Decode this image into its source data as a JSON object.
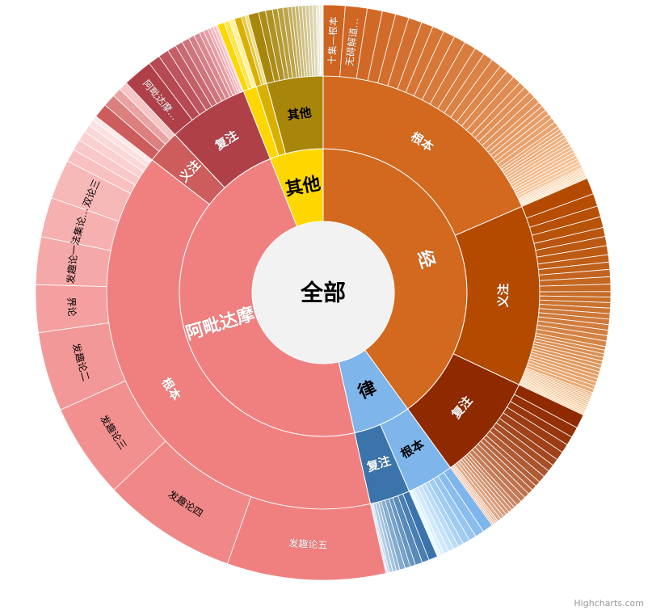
{
  "credits": "Highcharts.com",
  "chart_data": {
    "type": "sunburst",
    "root_label": "全部",
    "inner": [
      {
        "name": "经",
        "value": 0.4,
        "color": "#D2691E",
        "text": "#ffffff"
      },
      {
        "name": "律",
        "value": 0.065,
        "color": "#7EB6EC",
        "text": "#000000"
      },
      {
        "name": "阿毗达摩",
        "value": 0.475,
        "color": "#F08080",
        "text": "#ffffff"
      },
      {
        "name": "其他",
        "value": 0.06,
        "color": "#FFD700",
        "text": "#000000"
      }
    ],
    "middle": [
      {
        "name": "根本",
        "value": 0.185,
        "color": "#D2691E",
        "text": "#ffffff"
      },
      {
        "name": "义注",
        "value": 0.135,
        "color": "#B34A00",
        "text": "#ffffff"
      },
      {
        "name": "复注",
        "value": 0.08,
        "color": "#8F2A00",
        "text": "#ffffff"
      },
      {
        "name": "根本",
        "value": 0.035,
        "color": "#7EB6EC",
        "text": "#000000"
      },
      {
        "name": "复注",
        "value": 0.03,
        "color": "#3A74AA",
        "text": "#ffffff"
      },
      {
        "name": "根本",
        "value": 0.39,
        "color": "#F08080",
        "text": "#ffffff"
      },
      {
        "name": "义注",
        "value": 0.025,
        "color": "#CD5C5C",
        "text": "#ffffff"
      },
      {
        "name": "复注",
        "value": 0.06,
        "color": "#B04048",
        "text": "#ffffff"
      },
      {
        "name": "",
        "value": 0.01,
        "color": "#FFD700",
        "text": "#000000"
      },
      {
        "name": "",
        "value": 0.008,
        "color": "#D9B000",
        "text": "#000000"
      },
      {
        "name": "其他",
        "value": 0.042,
        "color": "#A8860A",
        "text": "#000000"
      }
    ],
    "outer_named": [
      {
        "name": "十集—根本",
        "value": 0.013
      },
      {
        "name": "无碍解道…",
        "value": 0.013
      },
      {
        "name": "发趣论五",
        "value": 0.1
      },
      {
        "name": "发趣论四",
        "value": 0.085
      },
      {
        "name": "发趣论三",
        "value": 0.06
      },
      {
        "name": "发趣论二",
        "value": 0.05
      },
      {
        "name": "界论",
        "value": 0.03
      },
      {
        "name": "发趣论一",
        "value": 0.03
      },
      {
        "name": "法集论…",
        "value": 0.025
      },
      {
        "name": "双论三",
        "value": 0.025
      },
      {
        "name": "阿毗达摩…",
        "value": 0.02
      }
    ],
    "outer_segments": [
      {
        "parent": 0,
        "items": [
          0.013,
          0.013,
          0.009,
          0.008,
          0.008,
          0.008,
          0.007,
          0.007,
          0.007,
          0.007,
          0.007,
          0.006,
          0.006,
          0.006,
          0.005,
          0.005,
          0.005,
          0.004,
          0.004,
          0.004,
          0.004,
          0.003,
          0.003,
          0.003,
          0.003,
          0.003,
          0.003,
          0.002,
          0.002,
          0.002,
          0.002,
          0.002,
          0.002,
          0.002,
          0.002,
          0.002,
          0.002,
          0.002,
          0.002,
          0.002,
          0.002,
          0.001,
          0.001,
          0.001,
          0.001,
          0.001,
          0.001,
          0.001
        ],
        "colorFrom": "#CF6420",
        "colorTo": "#FFD8B0"
      },
      {
        "parent": 1,
        "items": [
          0.009,
          0.007,
          0.006,
          0.006,
          0.005,
          0.005,
          0.005,
          0.004,
          0.004,
          0.004,
          0.004,
          0.004,
          0.003,
          0.003,
          0.003,
          0.003,
          0.003,
          0.003,
          0.003,
          0.003,
          0.003,
          0.003,
          0.002,
          0.002,
          0.002,
          0.002,
          0.002,
          0.002,
          0.002,
          0.002,
          0.002,
          0.002,
          0.002,
          0.002,
          0.002,
          0.001,
          0.001,
          0.001,
          0.001,
          0.001,
          0.001,
          0.001,
          0.001,
          0.001,
          0.001,
          0.001,
          0.001,
          0.001
        ],
        "colorFrom": "#B34A00",
        "colorTo": "#FFD0A0"
      },
      {
        "parent": 2,
        "items": [
          0.008,
          0.006,
          0.005,
          0.005,
          0.005,
          0.004,
          0.004,
          0.004,
          0.004,
          0.003,
          0.003,
          0.003,
          0.003,
          0.003,
          0.003,
          0.002,
          0.002,
          0.002,
          0.002,
          0.002,
          0.002,
          0.002,
          0.001,
          0.001,
          0.001,
          0.001
        ],
        "colorFrom": "#8F2A00",
        "colorTo": "#F0C0A0"
      },
      {
        "parent": 3,
        "items": [
          0.006,
          0.005,
          0.004,
          0.004,
          0.003,
          0.003,
          0.003,
          0.003,
          0.002,
          0.002
        ],
        "colorFrom": "#7EB6EC",
        "colorTo": "#E8F8FF"
      },
      {
        "parent": 4,
        "items": [
          0.005,
          0.004,
          0.004,
          0.003,
          0.003,
          0.003,
          0.002,
          0.002,
          0.002,
          0.001,
          0.001
        ],
        "colorFrom": "#3A74AA",
        "colorTo": "#D0E4F4"
      },
      {
        "parent": 5,
        "items": [
          "发趣论五",
          "发趣论四",
          "发趣论三",
          "发趣论二",
          "界论",
          "发趣论一",
          "法集论…",
          "双论三",
          0.008,
          0.007,
          0.006,
          0.005,
          0.004,
          0.003
        ],
        "colorFrom": "#F08080",
        "colorTo": "#FDE8E8"
      },
      {
        "parent": 6,
        "items": [
          0.008,
          0.007,
          0.005,
          0.005
        ],
        "colorFrom": "#CD5C5C",
        "colorTo": "#F6C6C6"
      },
      {
        "parent": 7,
        "items": [
          "阿毗达摩…",
          0.008,
          0.007,
          0.006,
          0.005,
          0.005,
          0.004,
          0.004,
          0.003,
          0.003,
          0.002,
          0.002,
          0.002,
          0.001
        ],
        "colorFrom": "#B04048",
        "colorTo": "#FFC8D0"
      },
      {
        "parent": 8,
        "items": [
          0.004,
          0.003,
          0.003
        ],
        "colorFrom": "#FFD700",
        "colorTo": "#FFF2A0"
      },
      {
        "parent": 9,
        "items": [
          0.004,
          0.002,
          0.002
        ],
        "colorFrom": "#D9B000",
        "colorTo": "#F0DC80"
      },
      {
        "parent": 10,
        "items": [
          0.006,
          0.004,
          0.004,
          0.003,
          0.003,
          0.003,
          0.002,
          0.002,
          0.002,
          0.002,
          0.002,
          0.002,
          0.002,
          0.002,
          0.001,
          0.001,
          0.001,
          0.001
        ],
        "colorFrom": "#A8860A",
        "colorTo": "#F0F0E8"
      }
    ]
  }
}
